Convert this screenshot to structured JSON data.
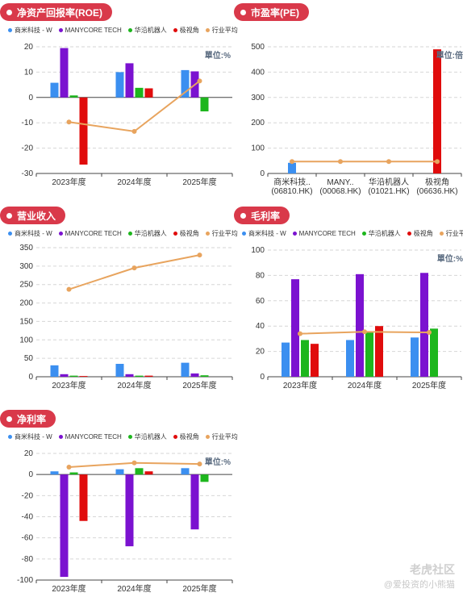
{
  "legend_items": [
    {
      "name": "商米科技 - W",
      "color": "#3b8ff0"
    },
    {
      "name": "MANYCORE TECH",
      "color": "#7b12d0"
    },
    {
      "name": "华沿机器人",
      "color": "#1db61d"
    },
    {
      "name": "极视角",
      "color": "#e00c0c"
    },
    {
      "name": "行业平均",
      "color": "#e8a45e"
    }
  ],
  "watermark": {
    "line1": "老虎社区",
    "line2": "@爱投资的小熊猫"
  },
  "chart_data": [
    {
      "id": "roe",
      "type": "bar",
      "title": "净资产回报率(ROE)",
      "unit_label": "單位:%",
      "categories": [
        "2023年度",
        "2024年度",
        "2025年度"
      ],
      "ylim": [
        -30,
        20
      ],
      "yticks": [
        20,
        10,
        0,
        -10,
        -20,
        -30
      ],
      "grid": true,
      "legend": "top-left",
      "series": [
        {
          "name": "商米科技 - W",
          "color": "#3b8ff0",
          "values": [
            5.8,
            10,
            10.8
          ]
        },
        {
          "name": "MANYCORE TECH",
          "color": "#7b12d0",
          "values": [
            19.5,
            13.5,
            10.3
          ]
        },
        {
          "name": "华沿机器人",
          "color": "#1db61d",
          "values": [
            0.8,
            3.8,
            -5.5
          ]
        },
        {
          "name": "极视角",
          "color": "#e00c0c",
          "values": [
            -26.5,
            3.6,
            null
          ]
        }
      ],
      "line": {
        "name": "行业平均",
        "color": "#e8a45e",
        "values": [
          -9.7,
          -13.4,
          6.5
        ]
      }
    },
    {
      "id": "pe",
      "type": "bar",
      "title": "市盈率(PE)",
      "unit_label": "單位:倍",
      "categories": [
        "商米科技..\n(06810.HK)",
        "MANY..\n(00068.HK)",
        "华沿机器人\n(01021.HK)",
        "极视角\n(06636.HK)"
      ],
      "ylim": [
        0,
        500
      ],
      "yticks": [
        500,
        400,
        300,
        200,
        100,
        0
      ],
      "grid": true,
      "colors": [
        "#3b8ff0",
        "#7b12d0",
        "#1db61d",
        "#e00c0c"
      ],
      "values": [
        42,
        null,
        null,
        490
      ],
      "line": {
        "name": "行业平均",
        "color": "#e8a45e",
        "values": [
          47,
          47,
          47,
          47
        ]
      }
    },
    {
      "id": "revenue",
      "type": "bar",
      "title": "营业收入",
      "unit_label": "",
      "categories": [
        "2023年度",
        "2024年度",
        "2025年度"
      ],
      "ylim": [
        0,
        350
      ],
      "yticks": [
        350,
        300,
        250,
        200,
        150,
        100,
        50,
        0
      ],
      "grid": true,
      "legend": "top-left",
      "series": [
        {
          "name": "商米科技 - W",
          "color": "#3b8ff0",
          "values": [
            31,
            35,
            38
          ]
        },
        {
          "name": "MANYCORE TECH",
          "color": "#7b12d0",
          "values": [
            7,
            7,
            9
          ]
        },
        {
          "name": "华沿机器人",
          "color": "#1db61d",
          "values": [
            3,
            3,
            4
          ]
        },
        {
          "name": "极视角",
          "color": "#e00c0c",
          "values": [
            2,
            3,
            null
          ]
        }
      ],
      "line": {
        "name": "行业平均",
        "color": "#e8a45e",
        "values": [
          237,
          295,
          330
        ]
      }
    },
    {
      "id": "gross",
      "type": "bar",
      "title": "毛利率",
      "unit_label": "單位:%",
      "categories": [
        "2023年度",
        "2024年度",
        "2025年度"
      ],
      "ylim": [
        0,
        100
      ],
      "yticks": [
        100,
        80,
        60,
        40,
        20,
        0
      ],
      "grid": true,
      "legend": "top-left",
      "series": [
        {
          "name": "商米科技 - W",
          "color": "#3b8ff0",
          "values": [
            27,
            29,
            31
          ]
        },
        {
          "name": "MANYCORE TECH",
          "color": "#7b12d0",
          "values": [
            77,
            81,
            82
          ]
        },
        {
          "name": "华沿机器人",
          "color": "#1db61d",
          "values": [
            29,
            35,
            38
          ]
        },
        {
          "name": "极视角",
          "color": "#e00c0c",
          "values": [
            26,
            40,
            null
          ]
        }
      ],
      "line": {
        "name": "行业平均",
        "color": "#e8a45e",
        "values": [
          34,
          35.5,
          35
        ]
      }
    },
    {
      "id": "netmargin",
      "type": "bar",
      "title": "净利率",
      "unit_label": "單位:%",
      "categories": [
        "2023年度",
        "2024年度",
        "2025年度"
      ],
      "ylim": [
        -100,
        20
      ],
      "yticks": [
        20,
        0,
        -20,
        -40,
        -60,
        -80,
        -100
      ],
      "grid": true,
      "legend": "top-left",
      "series": [
        {
          "name": "商米科技 - W",
          "color": "#3b8ff0",
          "values": [
            3,
            5,
            6
          ]
        },
        {
          "name": "MANYCORE TECH",
          "color": "#7b12d0",
          "values": [
            -97,
            -68,
            -52
          ]
        },
        {
          "name": "华沿机器人",
          "color": "#1db61d",
          "values": [
            2,
            6,
            -7
          ]
        },
        {
          "name": "极视角",
          "color": "#e00c0c",
          "values": [
            -44,
            3,
            null
          ]
        }
      ],
      "line": {
        "name": "行业平均",
        "color": "#e8a45e",
        "values": [
          7,
          11,
          10
        ]
      }
    }
  ]
}
